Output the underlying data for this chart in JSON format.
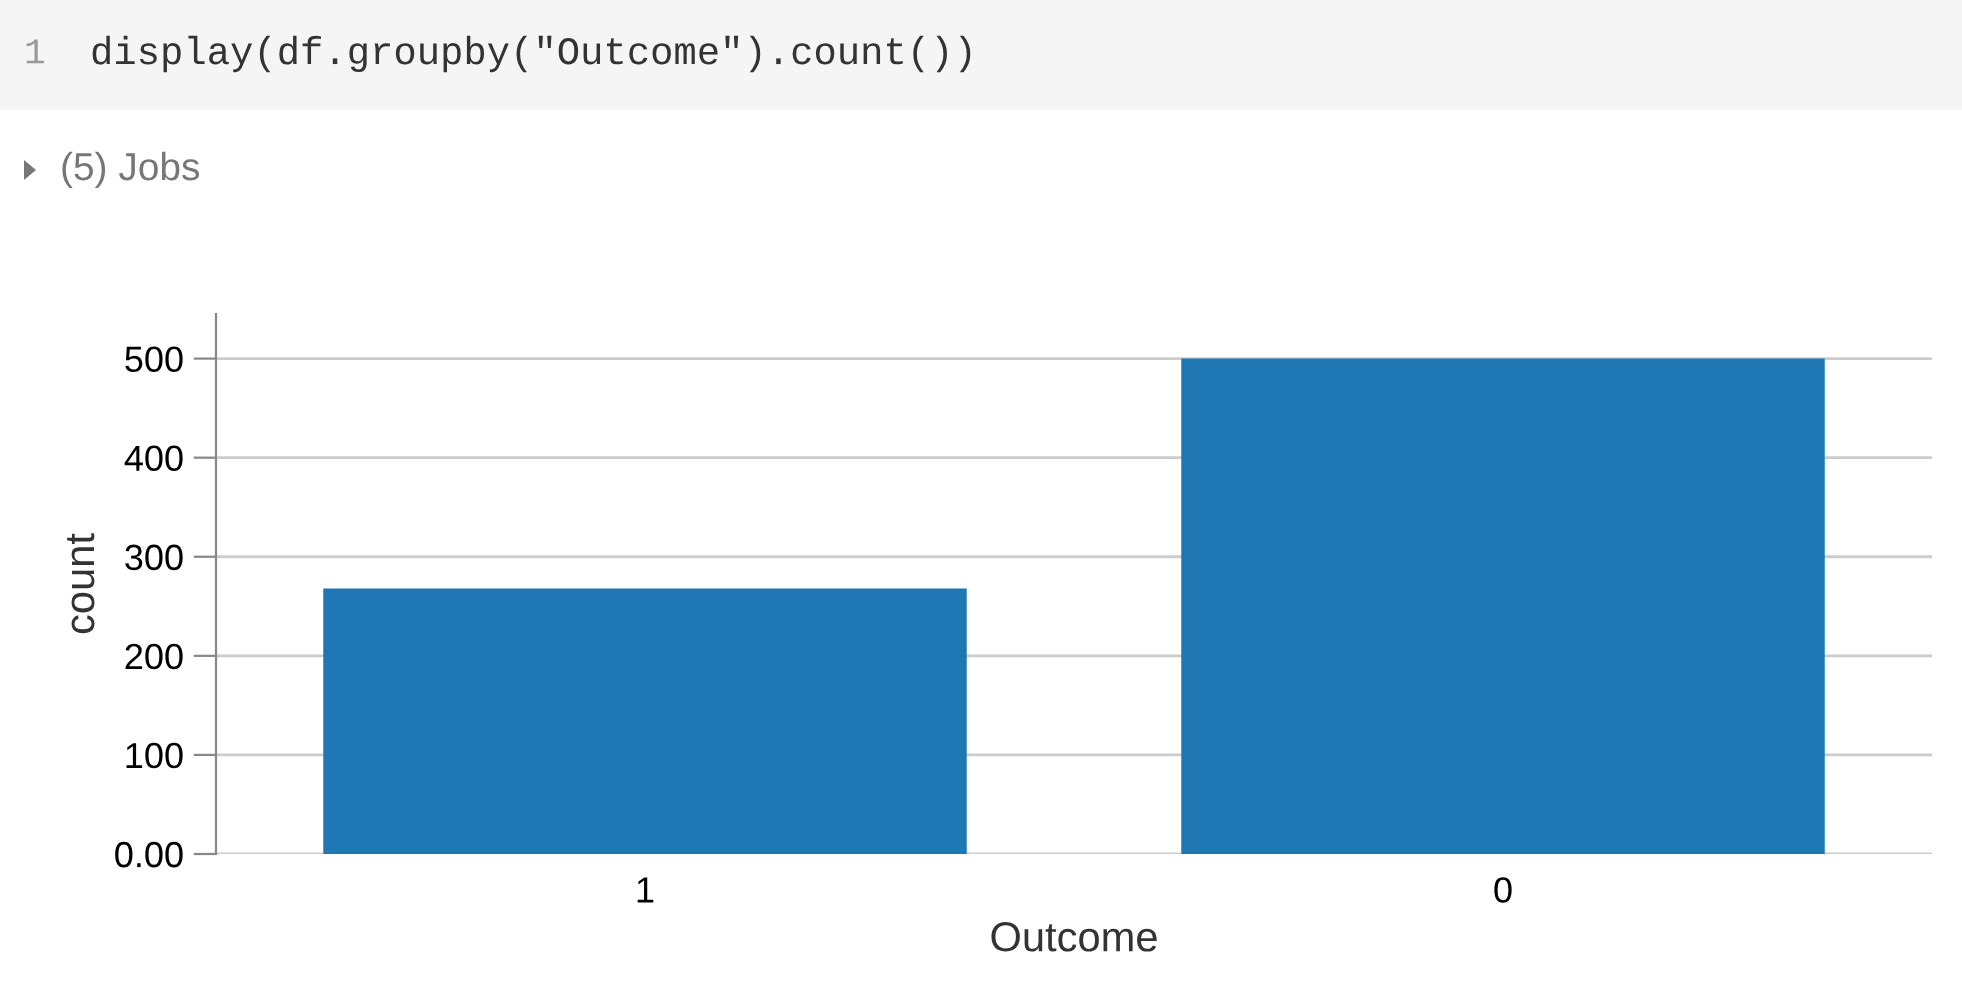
{
  "chart_data": {
    "type": "bar",
    "xlabel": "Outcome",
    "ylabel": "count",
    "categories": [
      "1",
      "0"
    ],
    "series": [
      {
        "color": "#1f77b4",
        "values": [
          268,
          500
        ]
      }
    ],
    "ylim": [
      0,
      545
    ],
    "yticks": [
      {
        "value": 0,
        "label": "0.00"
      },
      100,
      200,
      300,
      400,
      500
    ],
    "grid": "y",
    "legend": false,
    "annotations": [
      "1",
      "display(df.groupby(\"Outcome\").count())",
      "(5) Jobs"
    ]
  }
}
